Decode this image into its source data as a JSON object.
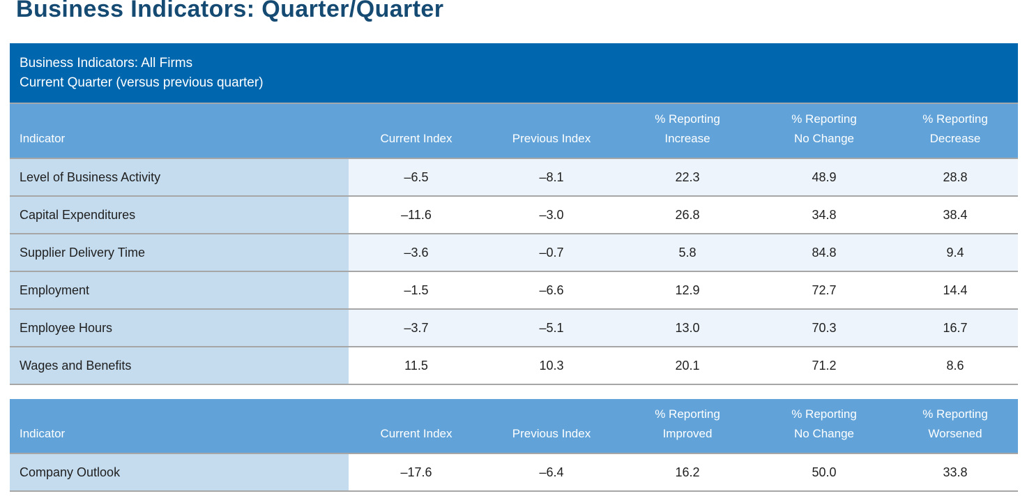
{
  "page_title": "Business Indicators: Quarter/Quarter",
  "banner": {
    "line1": "Business Indicators: All Firms",
    "line2": "Current Quarter (versus previous quarter)"
  },
  "colors": {
    "title_text": "#154a72",
    "banner_bg": "#0066ae",
    "banner_text": "#ffffff",
    "header_bg": "#61a3d8",
    "header_text": "#ffffff",
    "indicator_col_bg": "#c5dcee",
    "row_shaded_bg": "#edf4fb",
    "row_plain_bg": "#ffffff",
    "divider": "#a6a6a6",
    "cell_text": "#1f1f1f"
  },
  "tables": [
    {
      "name": "business-indicators-table",
      "columns": [
        "Indicator",
        "Current Index",
        "Previous Index",
        "% Reporting\nIncrease",
        "% Reporting\nNo Change",
        "% Reporting\nDecrease"
      ],
      "rows": [
        [
          "Level of Business Activity",
          "–6.5",
          "–8.1",
          "22.3",
          "48.9",
          "28.8"
        ],
        [
          "Capital Expenditures",
          "–11.6",
          "–3.0",
          "26.8",
          "34.8",
          "38.4"
        ],
        [
          "Supplier Delivery Time",
          "–3.6",
          "–0.7",
          "5.8",
          "84.8",
          "9.4"
        ],
        [
          "Employment",
          "–1.5",
          "–6.6",
          "12.9",
          "72.7",
          "14.4"
        ],
        [
          "Employee Hours",
          "–3.7",
          "–5.1",
          "13.0",
          "70.3",
          "16.7"
        ],
        [
          "Wages and Benefits",
          "11.5",
          "10.3",
          "20.1",
          "71.2",
          "8.6"
        ]
      ],
      "alternating": true
    },
    {
      "name": "company-outlook-table",
      "columns": [
        "Indicator",
        "Current Index",
        "Previous Index",
        "% Reporting\nImproved",
        "% Reporting\nNo Change",
        "% Reporting\nWorsened"
      ],
      "rows": [
        [
          "Company Outlook",
          "–17.6",
          "–6.4",
          "16.2",
          "50.0",
          "33.8"
        ]
      ],
      "alternating": false
    }
  ]
}
